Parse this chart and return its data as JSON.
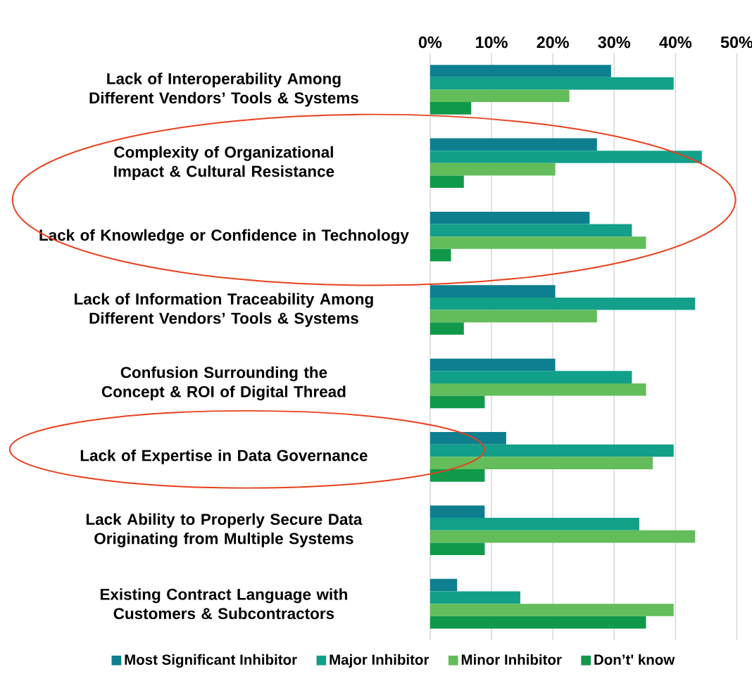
{
  "chart_data": {
    "type": "bar",
    "orientation": "horizontal",
    "categories": [
      "Lack of Interoperability Among Different Vendors’ Tools & Systems",
      "Complexity of Organizational Impact & Cultural Resistance",
      "Lack of Knowledge or Confidence in Technology",
      "Lack of Information Traceability Among Different Vendors’ Tools & Systems",
      "Confusion Surrounding the Concept & ROI of Digital Thread",
      "Lack of Expertise in Data Governance",
      "Lack Ability to Properly Secure Data Originating from Multiple Systems",
      "Existing Contract Language with Customers & Subcontractors"
    ],
    "series": [
      {
        "name": "Most Significant Inhibitor",
        "color": "#0e7f8f",
        "values": [
          29.5,
          27.2,
          26.0,
          20.4,
          20.4,
          12.4,
          8.9,
          4.4
        ]
      },
      {
        "name": "Major Inhibitor",
        "color": "#12a08a",
        "values": [
          39.7,
          44.3,
          32.9,
          43.2,
          32.9,
          39.7,
          34.1,
          14.7
        ]
      },
      {
        "name": "Minor Inhibitor",
        "color": "#63bd5a",
        "values": [
          22.7,
          20.4,
          35.2,
          27.2,
          35.2,
          36.3,
          43.2,
          39.7
        ]
      },
      {
        "name": "Don’t' know",
        "color": "#10994a",
        "values": [
          6.7,
          5.5,
          3.4,
          5.5,
          8.9,
          8.9,
          8.9,
          35.2
        ]
      }
    ],
    "xlim": [
      0,
      50
    ],
    "xticks": [
      {
        "value": 0,
        "label": "0%"
      },
      {
        "value": 10,
        "label": "10%"
      },
      {
        "value": 20,
        "label": "20%"
      },
      {
        "value": 30,
        "label": "30%"
      },
      {
        "value": 40,
        "label": "40%"
      },
      {
        "value": 50,
        "label": "50%"
      }
    ],
    "grid": "x",
    "legend": "bottom"
  }
}
